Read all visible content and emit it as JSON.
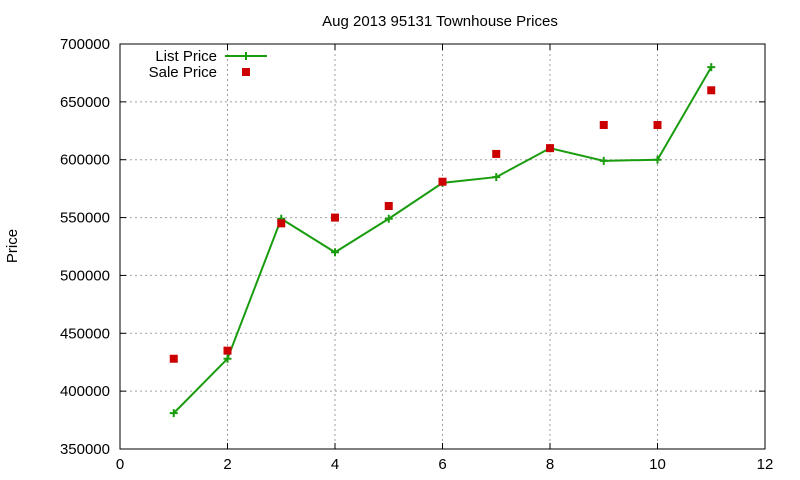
{
  "chart_data": {
    "type": "line",
    "title": "Aug 2013 95131 Townhouse Prices",
    "xlabel": "",
    "ylabel": "Price",
    "xlim": [
      0,
      12
    ],
    "ylim": [
      350000,
      700000
    ],
    "x_ticks": [
      "0",
      "2",
      "4",
      "6",
      "8",
      "10",
      "12"
    ],
    "y_ticks": [
      "350000",
      "400000",
      "450000",
      "500000",
      "550000",
      "600000",
      "650000",
      "700000"
    ],
    "x_tick_values": [
      0,
      2,
      4,
      6,
      8,
      10,
      12
    ],
    "y_tick_values": [
      350000,
      400000,
      450000,
      500000,
      550000,
      600000,
      650000,
      700000
    ],
    "grid": true,
    "legend_position": "top-left",
    "series": [
      {
        "name": "List Price",
        "style": "linespoints",
        "marker": "plus",
        "color": "#1a9c0f",
        "x": [
          1,
          2,
          3,
          4,
          5,
          6,
          7,
          8,
          9,
          10,
          11
        ],
        "y": [
          381000,
          428000,
          549000,
          520000,
          549000,
          580000,
          585000,
          610000,
          599000,
          600000,
          680000
        ]
      },
      {
        "name": "Sale Price",
        "style": "points",
        "marker": "square",
        "color": "#cc0000",
        "x": [
          1,
          2,
          3,
          4,
          5,
          6,
          7,
          8,
          9,
          10,
          11
        ],
        "y": [
          428000,
          435000,
          545000,
          550000,
          560000,
          581000,
          605000,
          610000,
          630000,
          630000,
          660000
        ]
      }
    ]
  }
}
